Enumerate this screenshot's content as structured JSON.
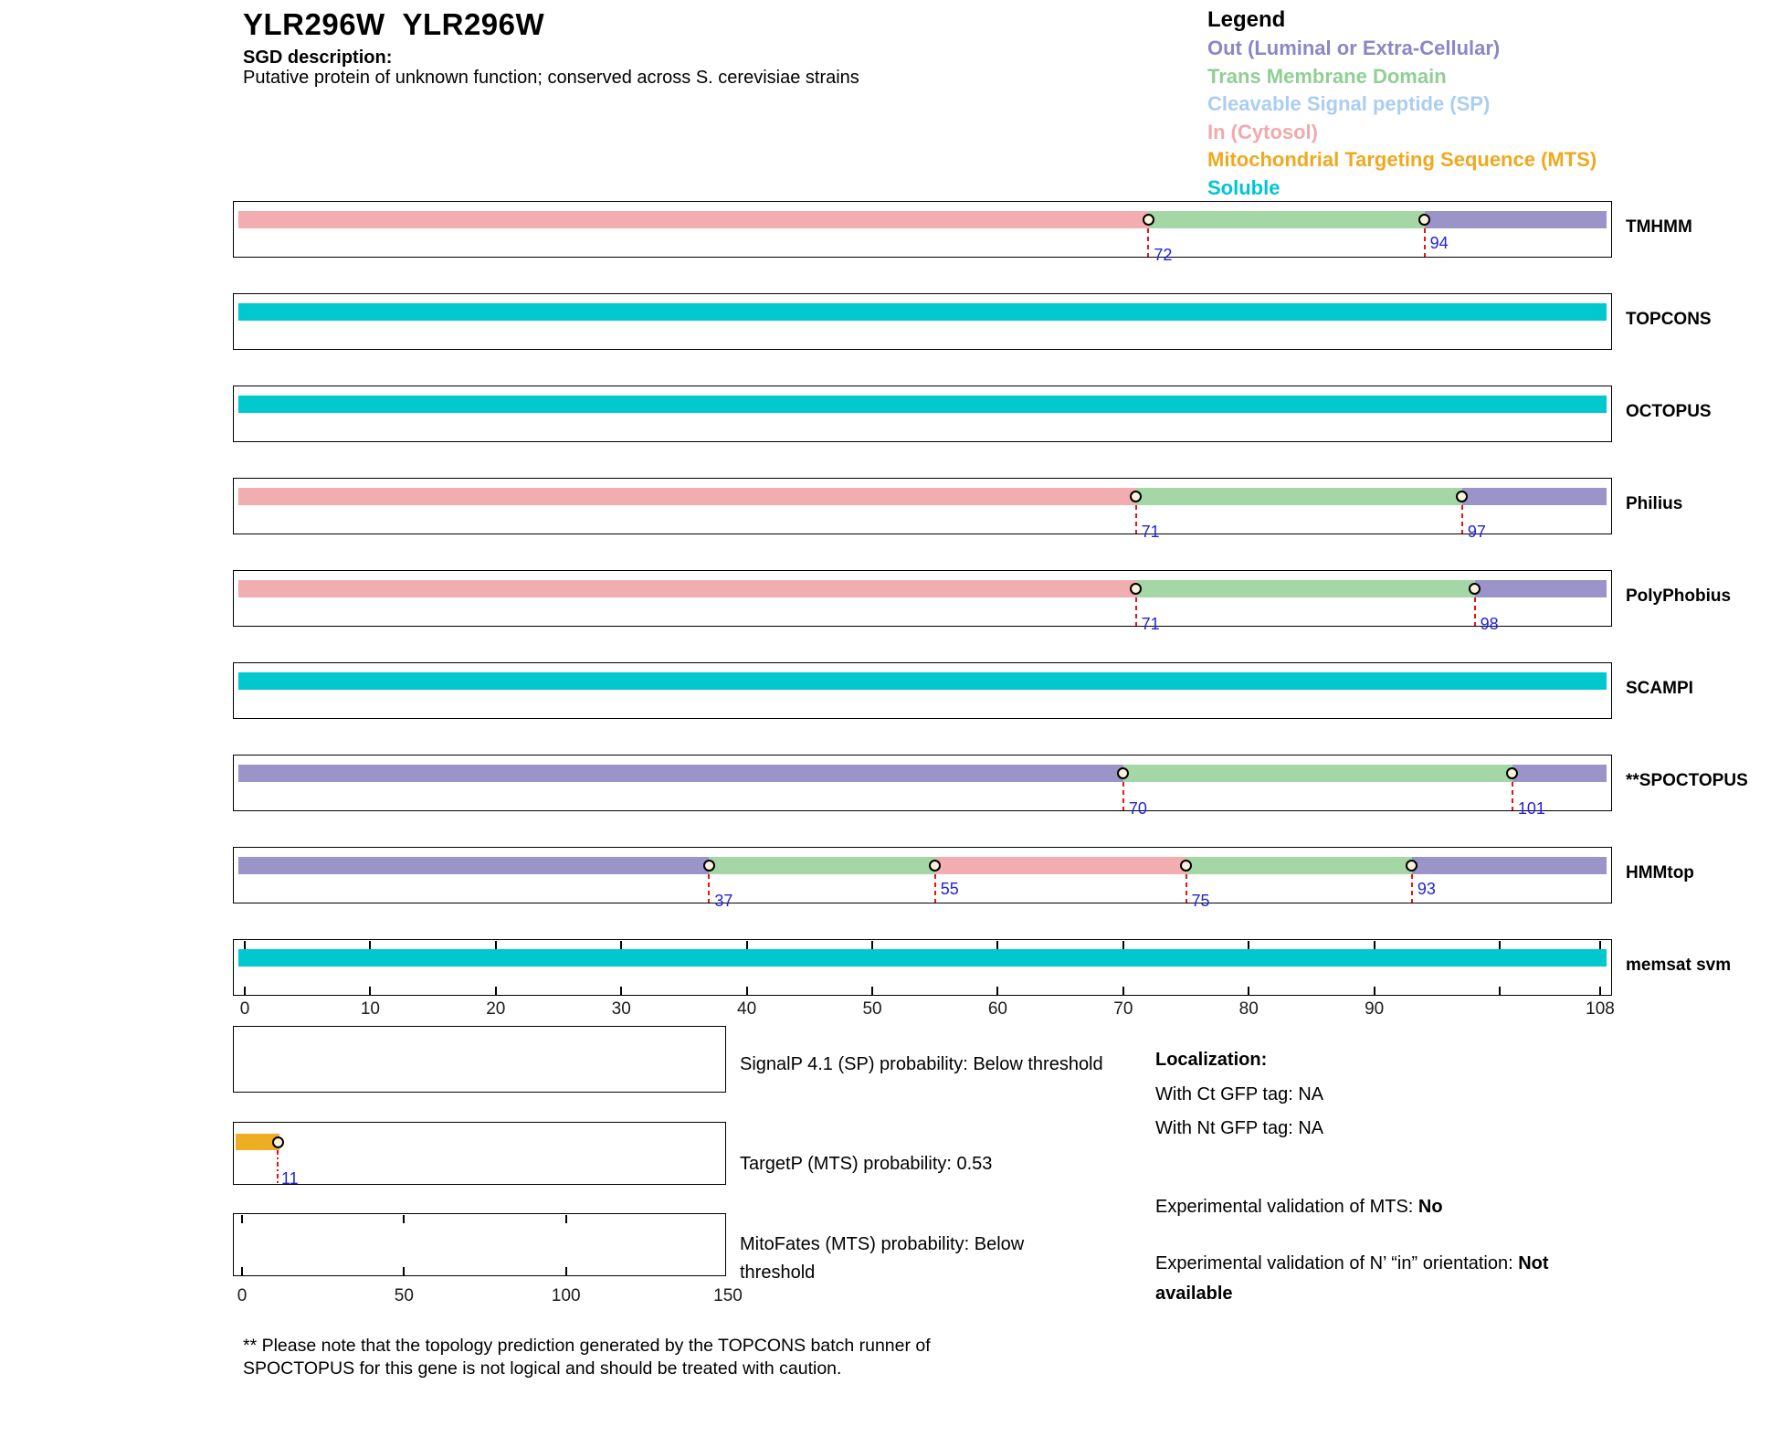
{
  "header": {
    "title": "YLR296W  YLR296W",
    "sgd_label": "SGD description:",
    "sgd_description": "Putative protein of unknown function; conserved across S. cerevisiae strains"
  },
  "legend": {
    "title": "Legend",
    "items": [
      {
        "key": "out",
        "label": "Out (Luminal or Extra-Cellular)",
        "color": "#8A87C6"
      },
      {
        "key": "tm",
        "label": "Trans Membrane Domain",
        "color": "#90CF94"
      },
      {
        "key": "sp",
        "label": "Cleavable Signal peptide (SP)",
        "color": "#ABCDF2"
      },
      {
        "key": "in",
        "label": "In (Cytosol)",
        "color": "#F2A9AC"
      },
      {
        "key": "mts",
        "label": "Mitochondrial Targeting Sequence (MTS)",
        "color": "#F0A81E"
      },
      {
        "key": "soluble",
        "label": "Soluble",
        "color": "#00C5D4"
      }
    ]
  },
  "chart_data": {
    "type": "topology-tracks",
    "x_axis": {
      "min": 0,
      "max": 108,
      "ticks_labeled": [
        0,
        10,
        20,
        30,
        40,
        50,
        60,
        70,
        80,
        90,
        108
      ],
      "ticks_inside": [
        0,
        10,
        20,
        30,
        40,
        50,
        60,
        70,
        80,
        90,
        100,
        108
      ]
    },
    "colors": {
      "in": "#F2ADB1",
      "tm": "#A5D6A6",
      "out": "#9A94C8",
      "soluble": "#00C8CE",
      "mts": "#EFAD24"
    },
    "tracks": [
      {
        "name": "TMHMM",
        "segments": [
          {
            "start": 0,
            "end": 72,
            "type": "in"
          },
          {
            "start": 72,
            "end": 94,
            "type": "tm"
          },
          {
            "start": 94,
            "end": 108,
            "type": "out"
          }
        ],
        "boundaries": [
          {
            "pos": 72,
            "label": "72",
            "level": "low"
          },
          {
            "pos": 94,
            "label": "94",
            "level": "high"
          }
        ]
      },
      {
        "name": "TOPCONS",
        "segments": [
          {
            "start": 0,
            "end": 108,
            "type": "soluble"
          }
        ],
        "boundaries": []
      },
      {
        "name": "OCTOPUS",
        "segments": [
          {
            "start": 0,
            "end": 108,
            "type": "soluble"
          }
        ],
        "boundaries": []
      },
      {
        "name": "Philius",
        "segments": [
          {
            "start": 0,
            "end": 71,
            "type": "in"
          },
          {
            "start": 71,
            "end": 97,
            "type": "tm"
          },
          {
            "start": 97,
            "end": 108,
            "type": "out"
          }
        ],
        "boundaries": [
          {
            "pos": 71,
            "label": "71",
            "level": "low"
          },
          {
            "pos": 97,
            "label": "97",
            "level": "low"
          }
        ]
      },
      {
        "name": "PolyPhobius",
        "segments": [
          {
            "start": 0,
            "end": 71,
            "type": "in"
          },
          {
            "start": 71,
            "end": 98,
            "type": "tm"
          },
          {
            "start": 98,
            "end": 108,
            "type": "out"
          }
        ],
        "boundaries": [
          {
            "pos": 71,
            "label": "71",
            "level": "low"
          },
          {
            "pos": 98,
            "label": "98",
            "level": "low"
          }
        ]
      },
      {
        "name": "SCAMPI",
        "segments": [
          {
            "start": 0,
            "end": 108,
            "type": "soluble"
          }
        ],
        "boundaries": []
      },
      {
        "name": "**SPOCTOPUS",
        "segments": [
          {
            "start": 0,
            "end": 70,
            "type": "out"
          },
          {
            "start": 70,
            "end": 101,
            "type": "tm"
          },
          {
            "start": 101,
            "end": 108,
            "type": "out"
          }
        ],
        "boundaries": [
          {
            "pos": 70,
            "label": "70",
            "level": "low"
          },
          {
            "pos": 101,
            "label": "101",
            "level": "low"
          }
        ]
      },
      {
        "name": "HMMtop",
        "segments": [
          {
            "start": 0,
            "end": 37,
            "type": "out"
          },
          {
            "start": 37,
            "end": 55,
            "type": "tm"
          },
          {
            "start": 55,
            "end": 75,
            "type": "in"
          },
          {
            "start": 75,
            "end": 93,
            "type": "tm"
          },
          {
            "start": 93,
            "end": 108,
            "type": "out"
          }
        ],
        "boundaries": [
          {
            "pos": 37,
            "label": "37",
            "level": "low"
          },
          {
            "pos": 55,
            "label": "55",
            "level": "high"
          },
          {
            "pos": 75,
            "label": "75",
            "level": "low"
          },
          {
            "pos": 93,
            "label": "93",
            "level": "high"
          }
        ]
      },
      {
        "name": "memsat svm",
        "segments": [
          {
            "start": 0,
            "end": 108,
            "type": "soluble"
          }
        ],
        "boundaries": [],
        "inner_ticks": true
      }
    ],
    "probability_plots": [
      {
        "name": "signalp",
        "label": "SignalP 4.1 (SP) probability: Below threshold",
        "bar": null
      },
      {
        "name": "targetp",
        "label": "TargetP (MTS) probability: 0.53",
        "bar": {
          "start": 0,
          "end": 11,
          "type": "mts",
          "marker": 11,
          "marker_label": "11"
        }
      },
      {
        "name": "mitofates",
        "label": "MitoFates (MTS) probability: Below threshold",
        "bar": null,
        "axis": {
          "max": 150,
          "ticks_labeled": [
            0,
            50,
            100,
            150
          ],
          "ticks_inside": [
            0,
            50,
            100
          ]
        }
      }
    ]
  },
  "info": {
    "localization_title": "Localization:",
    "ct_line": "With Ct GFP tag: NA",
    "nt_line": "With Nt GFP tag: NA",
    "mts_prefix": "Experimental validation of MTS: ",
    "mts_value": "No",
    "orientation_prefix": "Experimental validation of N’ “in” orientation: ",
    "orientation_value": "Not available"
  },
  "footnote": {
    "text": "** Please note that the topology prediction generated by the TOPCONS batch runner of SPOCTOPUS for this gene is not logical and should be treated with caution."
  }
}
